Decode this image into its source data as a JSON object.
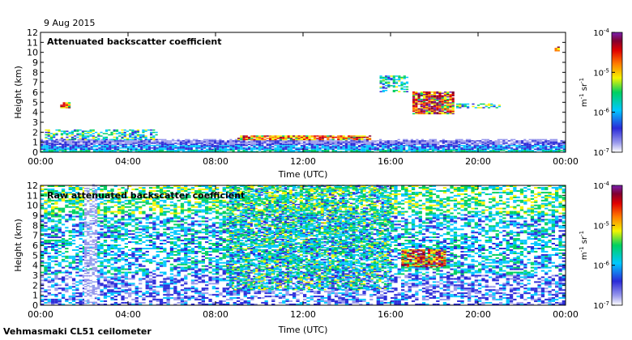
{
  "header": {
    "date": "9 Aug 2015"
  },
  "footer": {
    "instrument": "Vehmasmaki CL51 ceilometer"
  },
  "colorbar": {
    "ticks": [
      {
        "base": "10",
        "exp": "-4"
      },
      {
        "base": "10",
        "exp": "-5"
      },
      {
        "base": "10",
        "exp": "-6"
      },
      {
        "base": "10",
        "exp": "-7"
      }
    ],
    "unit": {
      "m": "m",
      "mexp": "-1",
      "sr": " sr",
      "srexp": "-1"
    },
    "colors": [
      "#ffffff",
      "#9898ec",
      "#2a2ad8",
      "#00c8ff",
      "#00d060",
      "#f4f400",
      "#ff7a00",
      "#e00000",
      "#800030",
      "#7a1fb0"
    ]
  },
  "chart_data": [
    {
      "type": "heatmap",
      "title": "Attenuated backscatter coefficient",
      "xlabel": "Time (UTC)",
      "ylabel": "Height (km)",
      "xticks": [
        "00:00",
        "04:00",
        "08:00",
        "12:00",
        "16:00",
        "20:00",
        "00:00"
      ],
      "yticks": [
        "0",
        "1",
        "2",
        "3",
        "4",
        "5",
        "6",
        "7",
        "8",
        "9",
        "10",
        "11",
        "12"
      ],
      "xlim_hours": [
        0,
        24
      ],
      "ylim_km": [
        0,
        12
      ],
      "scale": "log",
      "clim": [
        1e-07,
        0.0001
      ],
      "features": [
        {
          "name": "boundary layer aerosol",
          "t": [
            0,
            24
          ],
          "h": [
            0,
            1.3
          ],
          "intensity": "high-low"
        },
        {
          "name": "low cloud",
          "t": [
            0.2,
            5.3
          ],
          "h": [
            1.2,
            2.2
          ],
          "intensity": "medium"
        },
        {
          "name": "cloud 1.2-1.6 km",
          "t": [
            9,
            15
          ],
          "h": [
            1.2,
            1.6
          ],
          "intensity": "high"
        },
        {
          "name": "cloud 4.5 km",
          "t": [
            0.9,
            1.3
          ],
          "h": [
            4.4,
            4.9
          ],
          "intensity": "high"
        },
        {
          "name": "mid cloud",
          "t": [
            15.5,
            16.8
          ],
          "h": [
            6.0,
            7.6
          ],
          "intensity": "medium"
        },
        {
          "name": "thick mid cloud",
          "t": [
            17,
            18.9
          ],
          "h": [
            3.8,
            6.0
          ],
          "intensity": "very high"
        },
        {
          "name": "cloud 4.5 km late",
          "t": [
            19,
            21
          ],
          "h": [
            4.4,
            4.8
          ],
          "intensity": "medium"
        },
        {
          "name": "high cloud",
          "t": [
            23.5,
            23.7
          ],
          "h": [
            10.1,
            10.5
          ],
          "intensity": "high"
        }
      ]
    },
    {
      "type": "heatmap",
      "title": "Raw attenuated backscatter coefficient",
      "xlabel": "Time (UTC)",
      "ylabel": "Height (km)",
      "xticks": [
        "00:00",
        "04:00",
        "08:00",
        "12:00",
        "16:00",
        "20:00",
        "00:00"
      ],
      "yticks": [
        "0",
        "1",
        "2",
        "3",
        "4",
        "5",
        "6",
        "7",
        "8",
        "9",
        "10",
        "11",
        "12"
      ],
      "xlim_hours": [
        0,
        24
      ],
      "ylim_km": [
        0,
        12
      ],
      "scale": "log",
      "clim": [
        1e-07,
        0.0001
      ],
      "features": [
        {
          "name": "noise background",
          "t": [
            0,
            24
          ],
          "h": [
            0,
            12
          ],
          "intensity": "low-medium"
        },
        {
          "name": "precipitation streaks",
          "t": [
            8.5,
            16
          ],
          "h": [
            1.5,
            12
          ],
          "intensity": "medium"
        },
        {
          "name": "thick mid cloud",
          "t": [
            16.5,
            18.5
          ],
          "h": [
            3.8,
            5.5
          ],
          "intensity": "very high"
        },
        {
          "name": "clear column",
          "t": [
            2,
            2.6
          ],
          "h": [
            0,
            12
          ],
          "intensity": "low"
        }
      ]
    }
  ]
}
